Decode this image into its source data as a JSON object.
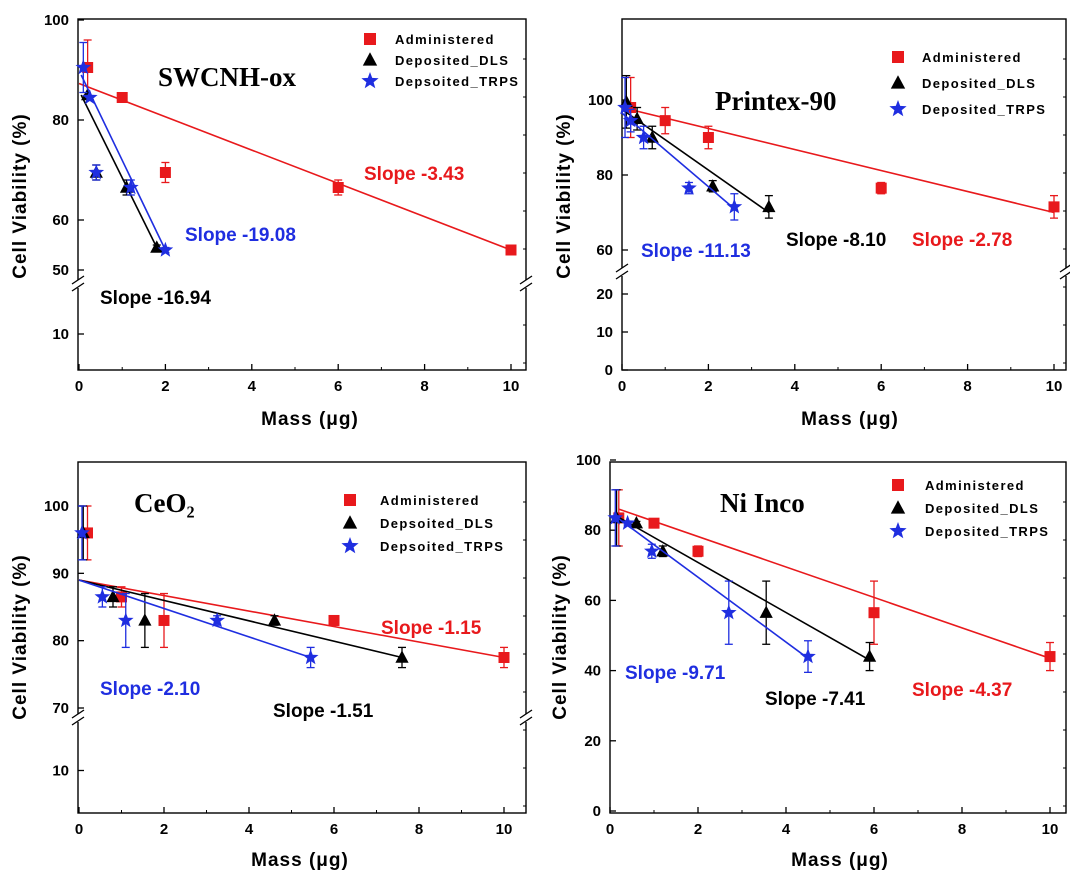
{
  "colors": {
    "administered": "#e8191c",
    "dls": "#000000",
    "trps": "#1f2ee0",
    "axis": "#000000"
  },
  "chart_data": [
    {
      "type": "scatter",
      "title": "SWCNH-ox",
      "xlabel": "Mass (μg)",
      "ylabel": "Cell Viability (%)",
      "xlim": [
        0,
        11
      ],
      "broken_y_axis": true,
      "yticks": [
        "10",
        "50",
        "60",
        "80",
        "100"
      ],
      "xticks": [
        "0",
        "2",
        "4",
        "6",
        "8",
        "10"
      ],
      "series": [
        {
          "name": "Administered",
          "marker": "square",
          "color": "#e8191c",
          "x": [
            0.2,
            1,
            2,
            6,
            10
          ],
          "y": [
            90.5,
            84.5,
            69.5,
            66.5,
            54
          ],
          "err": [
            5.5,
            0.5,
            2,
            1.5,
            0.5
          ],
          "fit": [
            [
              0,
              87.3
            ],
            [
              10,
              54
            ]
          ]
        },
        {
          "name": "Deposited_DLS",
          "marker": "triangle",
          "color": "#000000",
          "x": [
            0.2,
            0.4,
            1.1,
            1.8
          ],
          "y": [
            85,
            69.5,
            66.5,
            54.5
          ],
          "err": [
            0,
            1.5,
            1.5,
            0.5
          ],
          "fit": [
            [
              0.05,
              85
            ],
            [
              1.8,
              54.5
            ]
          ]
        },
        {
          "name": "Depsoited_TRPS",
          "marker": "star",
          "color": "#1f2ee0",
          "x": [
            0.1,
            0.25,
            0.4,
            1.2,
            2.0
          ],
          "y": [
            90.5,
            84.5,
            69.5,
            66.5,
            54
          ],
          "err": [
            5,
            0,
            1.5,
            1.5,
            0.5
          ],
          "fit": [
            [
              0.05,
              89
            ],
            [
              2.0,
              54
            ]
          ]
        }
      ],
      "annotations": [
        {
          "text": "Slope -3.43",
          "color": "#e8191c"
        },
        {
          "text": "Slope -19.08",
          "color": "#1f2ee0"
        },
        {
          "text": "Slope -16.94",
          "color": "#000000"
        }
      ]
    },
    {
      "type": "scatter",
      "title": "Printex-90",
      "xlabel": "Mass (μg)",
      "ylabel": "Cell Viability (%)",
      "xlim": [
        0,
        10.3
      ],
      "broken_y_axis": true,
      "yticks": [
        "0",
        "10",
        "20",
        "60",
        "80",
        "100"
      ],
      "xticks": [
        "0",
        "2",
        "4",
        "6",
        "8",
        "10"
      ],
      "series": [
        {
          "name": "Administered",
          "marker": "square",
          "color": "#e8191c",
          "x": [
            0.2,
            1,
            2,
            6,
            10
          ],
          "y": [
            98,
            94.5,
            90,
            76.5,
            71.5
          ],
          "err": [
            8,
            3.5,
            3,
            1.5,
            3
          ],
          "fit": [
            [
              0,
              98
            ],
            [
              10,
              70
            ]
          ]
        },
        {
          "name": "Deposited_DLS",
          "marker": "triangle",
          "color": "#000000",
          "x": [
            0.1,
            0.35,
            0.7,
            2.1,
            3.4
          ],
          "y": [
            99.5,
            95,
            90,
            77,
            71.5
          ],
          "err": [
            7,
            3,
            3,
            1.5,
            3
          ],
          "fit": [
            [
              0,
              97.5
            ],
            [
              3.4,
              70
            ]
          ]
        },
        {
          "name": "Deposited_TRPS",
          "marker": "star",
          "color": "#1f2ee0",
          "x": [
            0.07,
            0.2,
            0.5,
            1.55,
            2.6
          ],
          "y": [
            98,
            94.5,
            90,
            76.5,
            71.5
          ],
          "err": [
            8,
            3,
            3,
            1.5,
            3.5
          ],
          "fit": [
            [
              0,
              96.5
            ],
            [
              2.6,
              71
            ]
          ]
        }
      ],
      "annotations": [
        {
          "text": "Slope -11.13",
          "color": "#1f2ee0"
        },
        {
          "text": "Slope -8.10",
          "color": "#000000"
        },
        {
          "text": "Slope -2.78",
          "color": "#e8191c"
        }
      ]
    },
    {
      "type": "scatter",
      "title": "CeO₂",
      "xlabel": "Mass (μg)",
      "ylabel": "Cell Viability (%)",
      "xlim": [
        0,
        10.5
      ],
      "broken_y_axis": true,
      "yticks": [
        "10",
        "70",
        "80",
        "90",
        "100"
      ],
      "xticks": [
        "0",
        "2",
        "4",
        "6",
        "8",
        "10"
      ],
      "series": [
        {
          "name": "Administered",
          "marker": "square",
          "color": "#e8191c",
          "x": [
            0.2,
            1,
            2,
            6,
            10
          ],
          "y": [
            96,
            86.5,
            83,
            83,
            77.5
          ],
          "err": [
            4,
            1.5,
            4,
            0.7,
            1.5
          ],
          "fit": [
            [
              0,
              89
            ],
            [
              10,
              77.5
            ]
          ]
        },
        {
          "name": "Depsoited_DLS",
          "marker": "triangle",
          "color": "#000000",
          "x": [
            0.1,
            0.8,
            1.55,
            4.6,
            7.6
          ],
          "y": [
            96,
            86.5,
            83,
            83,
            77.5
          ],
          "err": [
            4,
            1.5,
            4,
            0.7,
            1.5
          ],
          "fit": [
            [
              0,
              89
            ],
            [
              7.6,
              77.5
            ]
          ]
        },
        {
          "name": "Depsoited_TRPS",
          "marker": "star",
          "color": "#1f2ee0",
          "x": [
            0.07,
            0.55,
            1.1,
            3.25,
            5.45
          ],
          "y": [
            96,
            86.5,
            83,
            83,
            77.5
          ],
          "err": [
            4,
            1.5,
            4,
            0.7,
            1.5
          ],
          "fit": [
            [
              0,
              89
            ],
            [
              5.45,
              77.5
            ]
          ]
        }
      ],
      "annotations": [
        {
          "text": "Slope -1.15",
          "color": "#e8191c"
        },
        {
          "text": "Slope -2.10",
          "color": "#1f2ee0"
        },
        {
          "text": "Slope -1.51",
          "color": "#000000"
        }
      ]
    },
    {
      "type": "scatter",
      "title": "Ni Inco",
      "xlabel": "Mass (μg)",
      "ylabel": "Cell Viability (%)",
      "xlim": [
        0,
        10.5
      ],
      "ylim": [
        0,
        100
      ],
      "broken_y_axis": false,
      "yticks": [
        "0",
        "20",
        "40",
        "60",
        "80",
        "100"
      ],
      "xticks": [
        "0",
        "2",
        "4",
        "6",
        "8",
        "10"
      ],
      "series": [
        {
          "name": "Administered",
          "marker": "square",
          "color": "#e8191c",
          "x": [
            0.2,
            1,
            2,
            6,
            10
          ],
          "y": [
            83.5,
            82,
            74,
            56.5,
            44
          ],
          "err": [
            8,
            0.5,
            1.5,
            9,
            4
          ],
          "fit": [
            [
              0.2,
              86
            ],
            [
              10,
              43.5
            ]
          ]
        },
        {
          "name": "Deposited_DLS",
          "marker": "triangle",
          "color": "#000000",
          "x": [
            0.15,
            0.6,
            1.2,
            3.55,
            5.9
          ],
          "y": [
            83.5,
            82,
            74,
            56.5,
            44
          ],
          "err": [
            8,
            0.5,
            1.5,
            9,
            4
          ],
          "fit": [
            [
              0.15,
              84
            ],
            [
              5.9,
              43
            ]
          ]
        },
        {
          "name": "Deposited_TRPS",
          "marker": "star",
          "color": "#1f2ee0",
          "x": [
            0.12,
            0.4,
            0.95,
            2.7,
            4.5
          ],
          "y": [
            83.5,
            82,
            74,
            56.5,
            44
          ],
          "err": [
            8,
            0.5,
            2,
            9,
            4.5
          ],
          "fit": [
            [
              0.12,
              84
            ],
            [
              4.5,
              43.5
            ]
          ]
        }
      ],
      "annotations": [
        {
          "text": "Slope -9.71",
          "color": "#1f2ee0"
        },
        {
          "text": "Slope -7.41",
          "color": "#000000"
        },
        {
          "text": "Slope -4.37",
          "color": "#e8191c"
        }
      ]
    }
  ]
}
